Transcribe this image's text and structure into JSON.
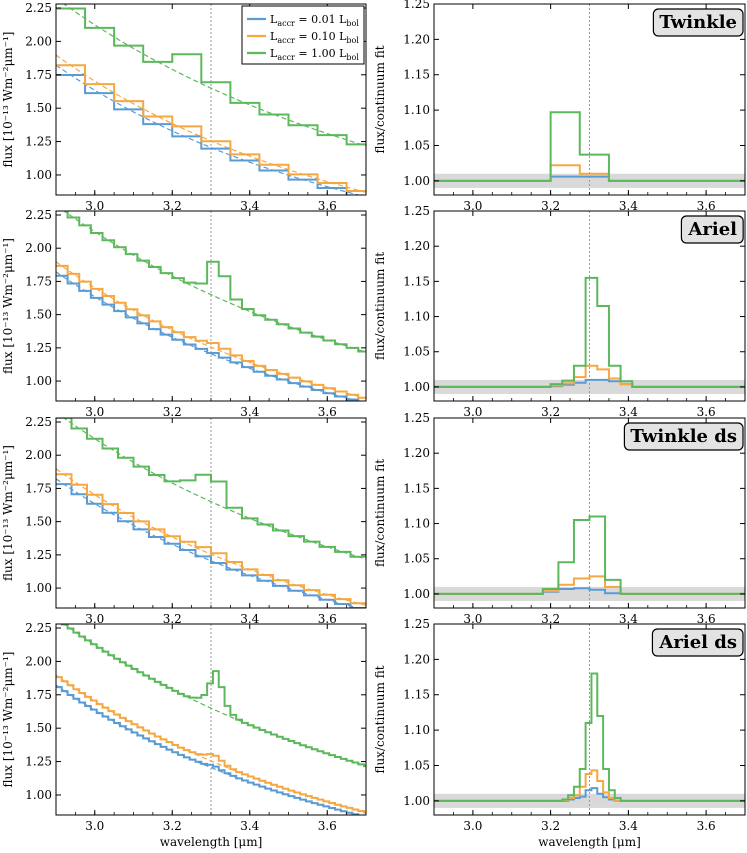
{
  "chart_data": {
    "type": "line",
    "layout": "4x2 grid of step-line panels",
    "xlim": [
      2.9,
      3.7
    ],
    "x_ticks": [
      "3.0",
      "3.2",
      "3.4",
      "3.6"
    ],
    "xlabel": "wavelength [μm]",
    "left_ylabel": "flux [10⁻¹³ Wm⁻²μm⁻¹]",
    "right_ylabel": "flux/continuum fit",
    "left_ylim": [
      0.85,
      2.28
    ],
    "left_y_ticks": [
      "1.00",
      "1.25",
      "1.50",
      "1.75",
      "2.00",
      "2.25"
    ],
    "right_ylim": [
      0.98,
      1.25
    ],
    "right_y_ticks": [
      "1.00",
      "1.05",
      "1.10",
      "1.15",
      "1.20",
      "1.25"
    ],
    "line_center_um": 3.3,
    "noise_band": [
      0.99,
      1.01
    ],
    "legend": {
      "location": "upper-right of top-left panel",
      "entries": [
        {
          "label": "L",
          "sub": "accr",
          "mid": " = 0.01 L",
          "sub2": "bol",
          "color": "#5a9bd4"
        },
        {
          "label": "L",
          "sub": "accr",
          "mid": " = 0.10 L",
          "sub2": "bol",
          "color": "#f5a742"
        },
        {
          "label": "L",
          "sub": "accr",
          "mid": " = 1.00 L",
          "sub2": "bol",
          "color": "#5cb85c"
        }
      ]
    },
    "continuum": {
      "form": "flux = c * (lambda / 3.3)^(-p)",
      "series": [
        {
          "name": "L_accr = 0.01 L_bol",
          "c": 1.205,
          "p": 3.2
        },
        {
          "name": "L_accr = 0.10 L_bol",
          "c": 1.255,
          "p": 3.2
        },
        {
          "name": "L_accr = 1.00 L_bol",
          "c": 1.65,
          "p": 2.65
        }
      ]
    },
    "rows": [
      {
        "badge": "Twinkle",
        "step": 0.075,
        "start": 2.9,
        "ratios": {
          "0.01": [
            1.0,
            1.0,
            1.0,
            1.0,
            1.006,
            1.006,
            1.0,
            1.0,
            1.0,
            1.0,
            1.0
          ],
          "0.10": [
            1.0,
            1.0,
            1.0,
            1.0,
            1.022,
            1.01,
            1.0,
            1.0,
            1.0,
            1.0,
            1.0
          ],
          "1.00": [
            1.0,
            1.0,
            1.0,
            1.0,
            1.097,
            1.037,
            1.0,
            1.0,
            1.0,
            1.0,
            1.0
          ]
        }
      },
      {
        "badge": "Ariel",
        "step": 0.03,
        "start": 2.9,
        "ratios": {
          "0.01": [
            1.0,
            1.0,
            1.0,
            1.0,
            1.0,
            1.0,
            1.0,
            1.0,
            1.0,
            1.0,
            1.001,
            1.003,
            1.006,
            1.01,
            1.01,
            1.008,
            1.004,
            1.0,
            1.0,
            1.0,
            1.0,
            1.0,
            1.0,
            1.0,
            1.0,
            1.0,
            1.0
          ],
          "0.10": [
            1.0,
            1.0,
            1.0,
            1.0,
            1.0,
            1.0,
            1.0,
            1.0,
            1.0,
            1.0,
            1.002,
            1.005,
            1.014,
            1.03,
            1.025,
            1.012,
            1.004,
            1.0,
            1.0,
            1.0,
            1.0,
            1.0,
            1.0,
            1.0,
            1.0,
            1.0,
            1.0
          ],
          "1.00": [
            1.0,
            1.0,
            1.0,
            1.0,
            1.0,
            1.0,
            1.0,
            1.0,
            1.0,
            1.0,
            1.004,
            1.009,
            1.03,
            1.155,
            1.115,
            1.03,
            1.008,
            1.0,
            1.0,
            1.0,
            1.0,
            1.0,
            1.0,
            1.0,
            1.0,
            1.0,
            1.0
          ]
        }
      },
      {
        "badge": "Twinkle ds",
        "step": 0.04,
        "start": 2.9,
        "ratios": {
          "0.01": [
            1.0,
            1.0,
            1.0,
            1.0,
            1.0,
            1.0,
            1.0,
            1.003,
            1.007,
            1.008,
            1.006,
            1.001,
            1.0,
            1.0,
            1.0,
            1.0,
            1.0,
            1.0,
            1.0,
            1.0
          ],
          "0.10": [
            1.0,
            1.0,
            1.0,
            1.0,
            1.0,
            1.0,
            1.0,
            1.004,
            1.013,
            1.022,
            1.025,
            1.01,
            1.0,
            1.0,
            1.0,
            1.0,
            1.0,
            1.0,
            1.0,
            1.0
          ],
          "1.00": [
            1.0,
            1.0,
            1.0,
            1.0,
            1.0,
            1.0,
            1.0,
            1.007,
            1.045,
            1.105,
            1.11,
            1.02,
            1.0,
            1.0,
            1.0,
            1.0,
            1.0,
            1.0,
            1.0,
            1.0
          ]
        }
      },
      {
        "badge": "Ariel ds",
        "step": 0.015,
        "start": 2.9,
        "ratios": {
          "0.01": [
            1.0,
            1.0,
            1.0,
            1.0,
            1.0,
            1.0,
            1.0,
            1.0,
            1.0,
            1.0,
            1.0,
            1.0,
            1.0,
            1.0,
            1.0,
            1.0,
            1.0,
            1.0,
            1.0,
            1.0,
            1.0,
            1.0,
            1.0,
            1.002,
            1.004,
            1.006,
            1.015,
            1.018,
            1.01,
            1.005,
            1.002,
            1.0,
            1.0,
            1.0,
            1.0,
            1.0,
            1.0,
            1.0,
            1.0,
            1.0,
            1.0,
            1.0,
            1.0,
            1.0,
            1.0,
            1.0,
            1.0,
            1.0,
            1.0,
            1.0,
            1.0,
            1.0,
            1.0,
            1.0
          ],
          "0.10": [
            1.0,
            1.0,
            1.0,
            1.0,
            1.0,
            1.0,
            1.0,
            1.0,
            1.0,
            1.0,
            1.0,
            1.0,
            1.0,
            1.0,
            1.0,
            1.0,
            1.0,
            1.0,
            1.0,
            1.0,
            1.0,
            1.0,
            1.001,
            1.004,
            1.008,
            1.02,
            1.038,
            1.043,
            1.028,
            1.012,
            1.004,
            1.0,
            1.0,
            1.0,
            1.0,
            1.0,
            1.0,
            1.0,
            1.0,
            1.0,
            1.0,
            1.0,
            1.0,
            1.0,
            1.0,
            1.0,
            1.0,
            1.0,
            1.0,
            1.0,
            1.0,
            1.0,
            1.0,
            1.0
          ],
          "1.00": [
            1.0,
            1.0,
            1.0,
            1.0,
            1.0,
            1.0,
            1.0,
            1.0,
            1.0,
            1.0,
            1.0,
            1.0,
            1.0,
            1.0,
            1.0,
            1.0,
            1.0,
            1.0,
            1.0,
            1.0,
            1.0,
            1.0,
            1.002,
            1.008,
            1.02,
            1.045,
            1.11,
            1.18,
            1.12,
            1.045,
            1.015,
            1.004,
            1.0,
            1.0,
            1.0,
            1.0,
            1.0,
            1.0,
            1.0,
            1.0,
            1.0,
            1.0,
            1.0,
            1.0,
            1.0,
            1.0,
            1.0,
            1.0,
            1.0,
            1.0,
            1.0,
            1.0,
            1.0,
            1.0
          ]
        }
      }
    ]
  }
}
